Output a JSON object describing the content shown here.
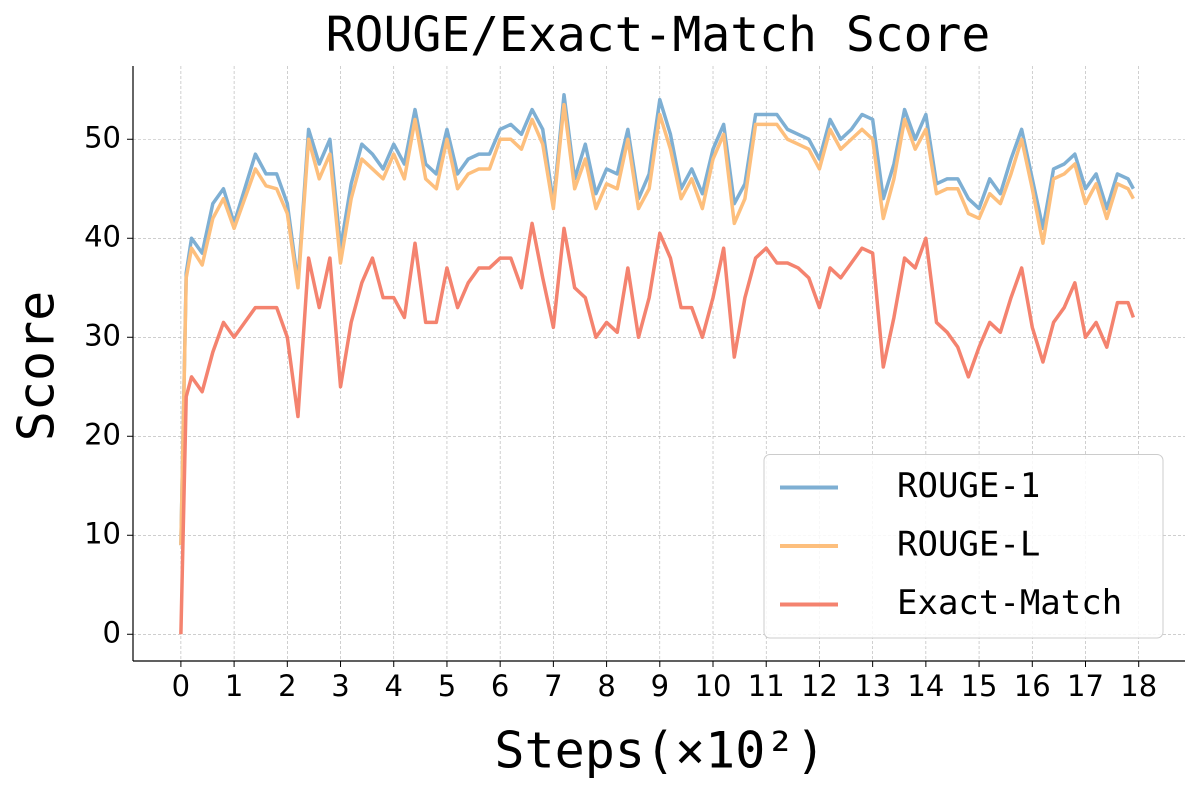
{
  "chart_data": {
    "type": "line",
    "title": "ROUGE/Exact-Match Score",
    "x_label": "Steps(×10²)",
    "y_label": "Score",
    "x": [
      0,
      0.1,
      0.2,
      0.4,
      0.6,
      0.8,
      1.0,
      1.2,
      1.4,
      1.6,
      1.8,
      2.0,
      2.2,
      2.4,
      2.6,
      2.8,
      3.0,
      3.2,
      3.4,
      3.6,
      3.8,
      4.0,
      4.2,
      4.4,
      4.6,
      4.8,
      5.0,
      5.2,
      5.4,
      5.6,
      5.8,
      6.0,
      6.2,
      6.4,
      6.6,
      6.8,
      7.0,
      7.2,
      7.4,
      7.6,
      7.8,
      8.0,
      8.2,
      8.4,
      8.6,
      8.8,
      9.0,
      9.2,
      9.4,
      9.6,
      9.8,
      10.0,
      10.2,
      10.4,
      10.6,
      10.8,
      11.0,
      11.2,
      11.4,
      11.6,
      11.8,
      12.0,
      12.2,
      12.4,
      12.6,
      12.8,
      13.0,
      13.2,
      13.4,
      13.6,
      13.8,
      14.0,
      14.2,
      14.4,
      14.6,
      14.8,
      15.0,
      15.2,
      15.4,
      15.6,
      15.8,
      16.0,
      16.2,
      16.4,
      16.6,
      16.8,
      17.0,
      17.2,
      17.4,
      17.6,
      17.8,
      17.9
    ],
    "series": [
      {
        "name": "ROUGE-1",
        "color": "#7eafd3",
        "values": [
          9,
          36.5,
          40,
          38.5,
          43.5,
          45,
          41.5,
          45,
          48.5,
          46.5,
          46.5,
          43.5,
          35.5,
          51,
          47.5,
          50,
          39,
          45.5,
          49.5,
          48.5,
          47,
          49.5,
          47.5,
          53,
          47.5,
          46.5,
          51,
          46.5,
          48,
          48.5,
          48.5,
          51,
          51.5,
          50.5,
          53,
          51,
          43.5,
          54.5,
          46,
          49.5,
          44.5,
          47,
          46.5,
          51,
          44,
          46.5,
          54,
          50.5,
          45,
          47,
          44.5,
          49,
          51.5,
          43.5,
          45.5,
          52.5,
          52.5,
          52.5,
          51,
          50.5,
          50,
          48,
          52,
          50,
          51,
          52.5,
          52,
          44,
          47.5,
          53,
          50,
          52.5,
          45.5,
          46,
          46,
          44,
          43,
          46,
          44.5,
          48,
          51,
          46,
          41,
          47,
          47.5,
          48.5,
          45,
          46.5,
          43,
          46.5,
          46,
          45
        ]
      },
      {
        "name": "ROUGE-L",
        "color": "#fdbf7d",
        "values": [
          9,
          36,
          39,
          37.3,
          42,
          44,
          41,
          44,
          47,
          45.3,
          45,
          42.5,
          35,
          50,
          46,
          48.5,
          37.5,
          44,
          48,
          47,
          46,
          48.5,
          46,
          52,
          46,
          45,
          50,
          45,
          46.5,
          47,
          47,
          50,
          50,
          49,
          52,
          49.5,
          43,
          53.5,
          45,
          48,
          43,
          45.5,
          45,
          50,
          43,
          45,
          52.5,
          49,
          44,
          46,
          43,
          48,
          50.5,
          41.5,
          44,
          51.5,
          51.5,
          51.5,
          50,
          49.5,
          49,
          47,
          51,
          49,
          50,
          51,
          50,
          42,
          46,
          52,
          49,
          51,
          44.5,
          45,
          45,
          42.5,
          42,
          44.5,
          43.5,
          46.5,
          50,
          45,
          39.5,
          46,
          46.5,
          47.5,
          43.5,
          45.5,
          42,
          45.5,
          45,
          44
        ]
      },
      {
        "name": "Exact-Match",
        "color": "#f4836f",
        "values": [
          0,
          24,
          26,
          24.5,
          28.5,
          31.5,
          30,
          31.5,
          33,
          33,
          33,
          30,
          22,
          38,
          33,
          38,
          25,
          31.5,
          35.5,
          38,
          34,
          34,
          32,
          39.5,
          31.5,
          31.5,
          37,
          33,
          35.5,
          37,
          37,
          38,
          38,
          35,
          41.5,
          36,
          31,
          41,
          35,
          34,
          30,
          31.5,
          30.5,
          37,
          30,
          34,
          40.5,
          38,
          33,
          33,
          30,
          34,
          39,
          28,
          34,
          38,
          39,
          37.5,
          37.5,
          37,
          36,
          33,
          37,
          36,
          37.5,
          39,
          38.5,
          27,
          32,
          38,
          37,
          40,
          31.5,
          30.5,
          29,
          26,
          29,
          31.5,
          30.5,
          34,
          37,
          31,
          27.5,
          31.5,
          33,
          35.5,
          30,
          31.5,
          29,
          33.5,
          33.5,
          32
        ]
      }
    ],
    "xlim": [
      -0.9,
      18.87
    ],
    "ylim": [
      -2.7,
      57.4
    ],
    "xticks": [
      0,
      1,
      2,
      3,
      4,
      5,
      6,
      7,
      8,
      9,
      10,
      11,
      12,
      13,
      14,
      15,
      16,
      17,
      18
    ],
    "yticks": [
      0,
      10,
      20,
      30,
      40,
      50
    ],
    "grid": true,
    "legend": "lower right"
  }
}
